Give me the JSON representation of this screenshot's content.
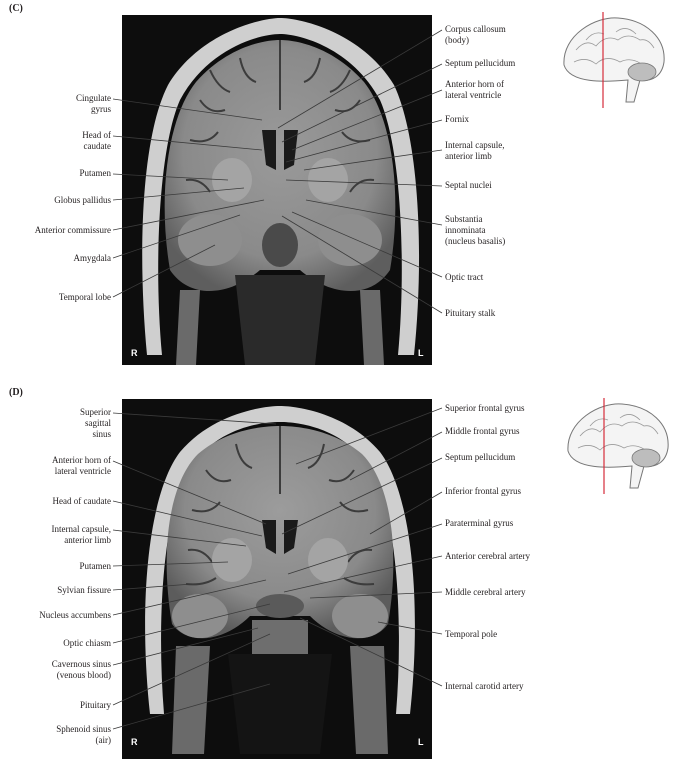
{
  "panel_c": {
    "letter": "(C)",
    "orientation": {
      "right": "R",
      "left": "L"
    },
    "left_labels": [
      {
        "id": "cingulate-gyrus",
        "text": "Cingulate\ngyrus"
      },
      {
        "id": "head-of-caudate",
        "text": "Head of\ncaudate"
      },
      {
        "id": "putamen",
        "text": "Putamen"
      },
      {
        "id": "globus-pallidus",
        "text": "Globus pallidus"
      },
      {
        "id": "anterior-commissure",
        "text": "Anterior commissure"
      },
      {
        "id": "amygdala",
        "text": "Amygdala"
      },
      {
        "id": "temporal-lobe",
        "text": "Temporal lobe"
      }
    ],
    "right_labels": [
      {
        "id": "corpus-callosum",
        "text": "Corpus callosum\n(body)"
      },
      {
        "id": "septum-pellucidum",
        "text": "Septum pellucidum"
      },
      {
        "id": "anterior-horn",
        "text": "Anterior horn of\nlateral ventricle"
      },
      {
        "id": "fornix",
        "text": "Fornix"
      },
      {
        "id": "internal-capsule",
        "text": "Internal capsule,\nanterior limb"
      },
      {
        "id": "septal-nuclei",
        "text": "Septal nuclei"
      },
      {
        "id": "substantia-innominata",
        "text": "Substantia\ninnominata\n(nucleus basalis)"
      },
      {
        "id": "optic-tract",
        "text": "Optic tract"
      },
      {
        "id": "pituitary-stalk",
        "text": "Pituitary stalk"
      }
    ]
  },
  "panel_d": {
    "letter": "(D)",
    "orientation": {
      "right": "R",
      "left": "L"
    },
    "left_labels": [
      {
        "id": "superior-sagittal-sinus",
        "text": "Superior\nsagittal\nsinus"
      },
      {
        "id": "anterior-horn",
        "text": "Anterior horn of\nlateral ventricle"
      },
      {
        "id": "head-of-caudate",
        "text": "Head of caudate"
      },
      {
        "id": "internal-capsule",
        "text": "Internal capsule,\nanterior limb"
      },
      {
        "id": "putamen",
        "text": "Putamen"
      },
      {
        "id": "sylvian-fissure",
        "text": "Sylvian fissure"
      },
      {
        "id": "nucleus-accumbens",
        "text": "Nucleus accumbens"
      },
      {
        "id": "optic-chiasm",
        "text": "Optic chiasm"
      },
      {
        "id": "cavernous-sinus",
        "text": "Cavernous sinus\n(venous blood)"
      },
      {
        "id": "pituitary",
        "text": "Pituitary"
      },
      {
        "id": "sphenoid-sinus",
        "text": "Sphenoid sinus\n(air)"
      }
    ],
    "right_labels": [
      {
        "id": "superior-frontal-gyrus",
        "text": "Superior frontal gyrus"
      },
      {
        "id": "middle-frontal-gyrus",
        "text": "Middle frontal gyrus"
      },
      {
        "id": "septum-pellucidum",
        "text": "Septum pellucidum"
      },
      {
        "id": "inferior-frontal-gyrus",
        "text": "Inferior frontal gyrus"
      },
      {
        "id": "paraterminal-gyrus",
        "text": "Paraterminal gyrus"
      },
      {
        "id": "anterior-cerebral-artery",
        "text": "Anterior cerebral artery"
      },
      {
        "id": "middle-cerebral-artery",
        "text": "Middle cerebral artery"
      },
      {
        "id": "temporal-pole",
        "text": "Temporal pole"
      },
      {
        "id": "internal-carotid-artery",
        "text": "Internal carotid artery"
      }
    ]
  },
  "colors": {
    "slice_line": "#d62b3a",
    "leader": "#3a3a3a",
    "mri_background": "#0d0d0d"
  }
}
